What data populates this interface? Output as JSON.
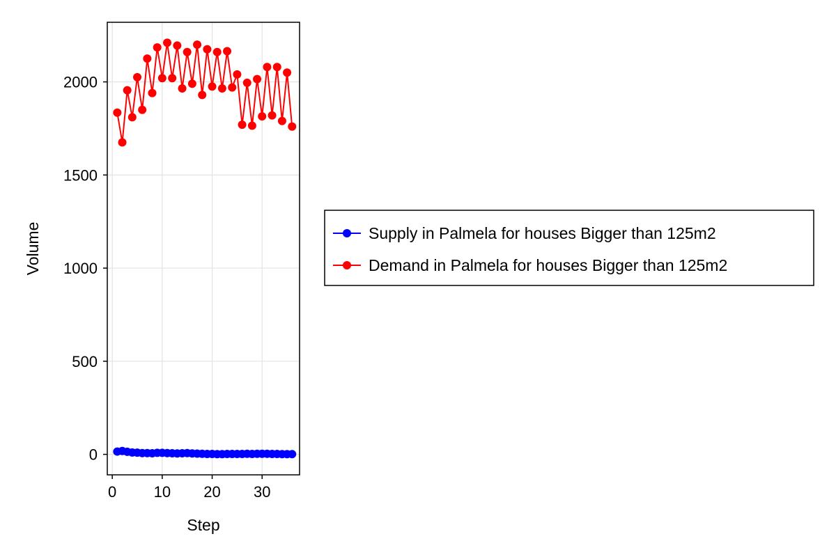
{
  "chart_data": {
    "type": "line",
    "xlabel": "Step",
    "ylabel": "Volume",
    "xlim": [
      -1,
      37.5
    ],
    "ylim": [
      -110,
      2320
    ],
    "xticks": [
      0,
      10,
      20,
      30
    ],
    "yticks": [
      0,
      500,
      1000,
      1500,
      2000
    ],
    "grid": true,
    "legend_position": "right",
    "x": [
      1,
      2,
      3,
      4,
      5,
      6,
      7,
      8,
      9,
      10,
      11,
      12,
      13,
      14,
      15,
      16,
      17,
      18,
      19,
      20,
      21,
      22,
      23,
      24,
      25,
      26,
      27,
      28,
      29,
      30,
      31,
      32,
      33,
      34,
      35,
      36
    ],
    "series": [
      {
        "name": "Supply in Palmela for houses Bigger than 125m2",
        "color": "#0000ff",
        "marker": "circle",
        "values": [
          15,
          18,
          14,
          10,
          9,
          7,
          7,
          6,
          8,
          8,
          7,
          6,
          5,
          6,
          7,
          5,
          4,
          3,
          2,
          2,
          1,
          1,
          2,
          2,
          2,
          2,
          3,
          2,
          3,
          3,
          3,
          2,
          2,
          1,
          1,
          1
        ]
      },
      {
        "name": "Demand in Palmela for houses Bigger than 125m2",
        "color": "#ff0000",
        "marker": "circle",
        "values": [
          1835,
          1675,
          1955,
          1810,
          2025,
          1850,
          2125,
          1940,
          2185,
          2020,
          2210,
          2020,
          2195,
          1965,
          2160,
          1990,
          2200,
          1930,
          2175,
          1975,
          2160,
          1965,
          2165,
          1970,
          2040,
          1770,
          1995,
          1765,
          2015,
          1815,
          2080,
          1820,
          2080,
          1790,
          2050,
          1760
        ]
      }
    ]
  }
}
